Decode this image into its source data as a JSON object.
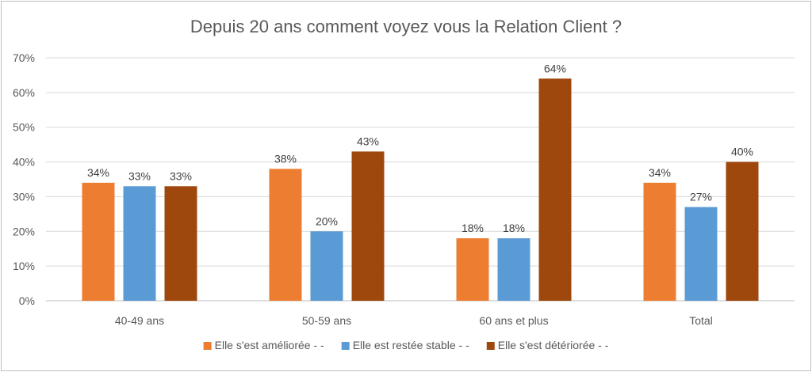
{
  "chart_data": {
    "type": "bar",
    "title": "Depuis 20 ans comment voyez vous la Relation Client ?",
    "categories": [
      "40-49 ans",
      "50-59 ans",
      "60 ans et plus",
      "Total"
    ],
    "series": [
      {
        "name": "Elle s'est améliorée - -",
        "color": "#ed7d31",
        "values": [
          34,
          38,
          18,
          34
        ],
        "labels": [
          "34%",
          "38%",
          "18%",
          "34%"
        ]
      },
      {
        "name": "Elle est restée stable - -",
        "color": "#5b9bd5",
        "values": [
          33,
          20,
          18,
          27
        ],
        "labels": [
          "33%",
          "20%",
          "18%",
          "27%"
        ]
      },
      {
        "name": "Elle s'est détériorée - -",
        "color": "#9e480e",
        "values": [
          33,
          43,
          64,
          40
        ],
        "labels": [
          "33%",
          "43%",
          "64%",
          "40%"
        ]
      }
    ],
    "y_ticks": [
      "0%",
      "10%",
      "20%",
      "30%",
      "40%",
      "50%",
      "60%",
      "70%"
    ],
    "ylim": [
      0,
      70
    ],
    "grid": true,
    "legend_position": "bottom"
  }
}
